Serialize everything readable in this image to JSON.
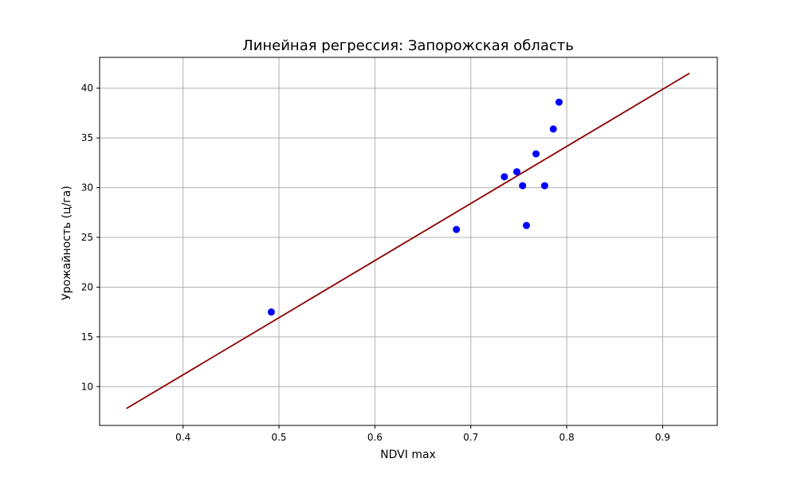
{
  "chart_data": {
    "type": "scatter",
    "title": "Линейная регрессия: Запорожская область",
    "xlabel": "NDVI max",
    "ylabel": "Урожайность (ц/га)",
    "xlim": [
      0.313,
      0.957
    ],
    "ylim": [
      6.1,
      43.1
    ],
    "xticks": [
      0.4,
      0.5,
      0.6,
      0.7,
      0.8,
      0.9
    ],
    "yticks": [
      10,
      15,
      20,
      25,
      30,
      35,
      40
    ],
    "xtick_labels": [
      "0.4",
      "0.5",
      "0.6",
      "0.7",
      "0.8",
      "0.9"
    ],
    "ytick_labels": [
      "10",
      "15",
      "20",
      "25",
      "30",
      "35",
      "40"
    ],
    "grid": true,
    "series": [
      {
        "kind": "scatter",
        "color": "#0000ff",
        "points": [
          {
            "x": 0.492,
            "y": 17.5
          },
          {
            "x": 0.685,
            "y": 25.8
          },
          {
            "x": 0.735,
            "y": 31.1
          },
          {
            "x": 0.748,
            "y": 31.6
          },
          {
            "x": 0.754,
            "y": 30.2
          },
          {
            "x": 0.758,
            "y": 26.2
          },
          {
            "x": 0.768,
            "y": 33.4
          },
          {
            "x": 0.777,
            "y": 30.2
          },
          {
            "x": 0.786,
            "y": 35.9
          },
          {
            "x": 0.792,
            "y": 38.6
          }
        ]
      },
      {
        "kind": "line",
        "color": "#8b0000",
        "points": [
          {
            "x": 0.341,
            "y": 7.8
          },
          {
            "x": 0.928,
            "y": 41.5
          }
        ]
      }
    ]
  }
}
